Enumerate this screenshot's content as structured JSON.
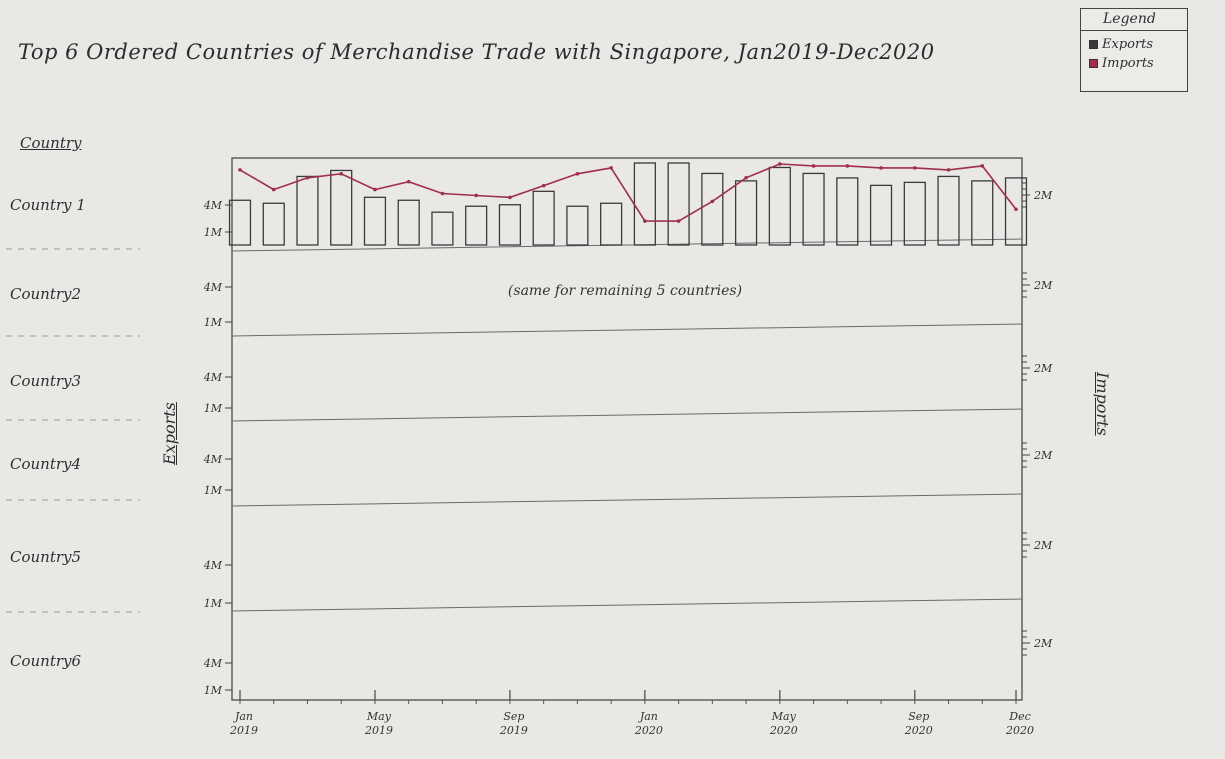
{
  "chart_data": {
    "type": "bar",
    "title": "Top 6 Ordered Countries of Merchandise Trade with Singapore, Jan2019-Dec2020",
    "ylabel_left": "Exports",
    "ylabel_right": "Imports",
    "country_header": "Country",
    "countries": [
      "Country 1",
      "Country2",
      "Country3",
      "Country4",
      "Country5",
      "Country6"
    ],
    "left_ticks": [
      "4M",
      "1M"
    ],
    "right_tick": "2M",
    "x_tick_labels": [
      {
        "month": "Jan",
        "year": "2019",
        "index": 0
      },
      {
        "month": "May",
        "year": "2019",
        "index": 4
      },
      {
        "month": "Sep",
        "year": "2019",
        "index": 8
      },
      {
        "month": "Jan",
        "year": "2020",
        "index": 12
      },
      {
        "month": "May",
        "year": "2020",
        "index": 16
      },
      {
        "month": "Sep",
        "year": "2020",
        "index": 20
      },
      {
        "month": "Dec",
        "year": "2020",
        "index": 23
      }
    ],
    "note": "(same for remaining 5 countries)",
    "legend": {
      "title": "Legend",
      "items": [
        {
          "label": "Exports",
          "color": "#3a3a3e"
        },
        {
          "label": "Imports",
          "color": "#a0304a"
        }
      ]
    },
    "series": [
      {
        "name": "Exports",
        "color": "#3a3a3e",
        "bar_values": [
          3.0,
          2.8,
          4.6,
          5.0,
          3.2,
          3.0,
          2.2,
          2.6,
          2.7,
          3.6,
          2.6,
          2.8,
          5.5,
          5.5,
          4.8,
          4.3,
          5.2,
          4.8,
          4.5,
          4.0,
          4.2,
          4.6,
          4.3,
          4.5
        ]
      },
      {
        "name": "Imports",
        "color": "#a0304a",
        "line_values": [
          2.4,
          1.9,
          2.2,
          2.3,
          1.9,
          2.1,
          1.8,
          1.75,
          1.7,
          2.0,
          2.3,
          2.45,
          1.1,
          1.1,
          1.6,
          2.2,
          2.55,
          2.5,
          2.5,
          2.45,
          2.45,
          2.4,
          2.5,
          1.4
        ]
      }
    ]
  }
}
